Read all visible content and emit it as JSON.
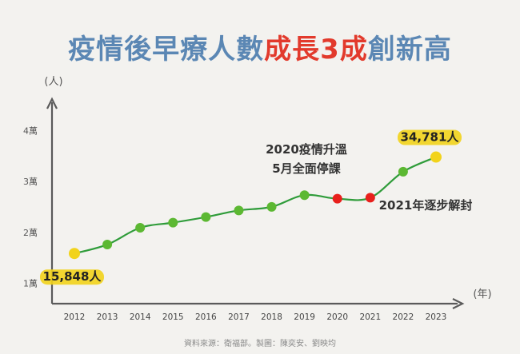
{
  "title": {
    "part1": "疫情後早療人數",
    "part2": "成長3成",
    "part3": "創新高"
  },
  "colors": {
    "title_blue": "#5b87b4",
    "title_red": "#e23a2c",
    "line": "#2f9c3a",
    "point_normal": "#5cb832",
    "point_covid": "#e8201c",
    "point_highlight": "#f2d31b",
    "axis": "#5a5a5a"
  },
  "chart_data": {
    "type": "line",
    "xlabel": "(年)",
    "ylabel": "(人)",
    "categories": [
      "2012",
      "2013",
      "2014",
      "2015",
      "2016",
      "2017",
      "2018",
      "2019",
      "2020",
      "2021",
      "2022",
      "2023"
    ],
    "values": [
      15848,
      17600,
      20900,
      21900,
      23000,
      24300,
      25000,
      27300,
      26600,
      26800,
      31900,
      34781
    ],
    "point_types": [
      "highlight",
      "normal",
      "normal",
      "normal",
      "normal",
      "normal",
      "normal",
      "normal",
      "covid",
      "covid",
      "normal",
      "highlight"
    ],
    "y_ticks": [
      {
        "value": 10000,
        "label": "1萬"
      },
      {
        "value": 20000,
        "label": "2萬"
      },
      {
        "value": 30000,
        "label": "3萬"
      },
      {
        "value": 40000,
        "label": "4萬"
      }
    ],
    "ylim": [
      6000,
      46000
    ],
    "data_labels": [
      {
        "index": 0,
        "text": "15,848人"
      },
      {
        "index": 11,
        "text": "34,781人"
      }
    ],
    "annotations": [
      {
        "index": 8,
        "lines": [
          "2020疫情升溫",
          "5月全面停課"
        ]
      },
      {
        "index": 9,
        "lines": [
          "2021年逐步解封"
        ]
      }
    ]
  },
  "credit": "資料來源：衛福部。製圖：陳奕安、劉映均"
}
